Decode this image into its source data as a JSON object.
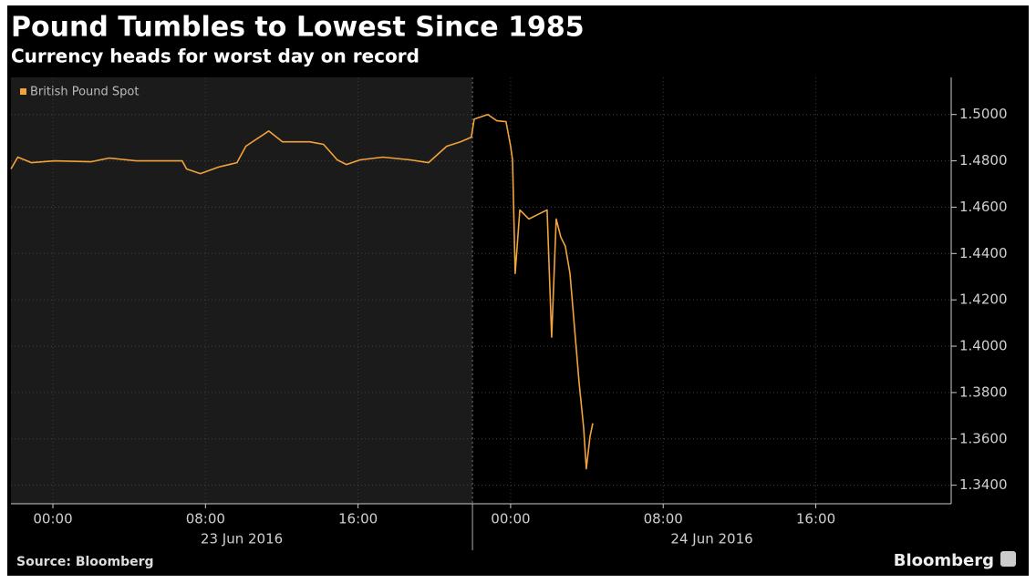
{
  "chart_data": {
    "type": "line",
    "title": "Pound Tumbles to Lowest Since 1985",
    "subtitle": "Currency heads for worst day on record",
    "source": "Source: Bloomberg",
    "brand": "Bloomberg",
    "x": [
      -2.2,
      -1.84,
      -1.12,
      0.08,
      1.99,
      2.95,
      4.38,
      6.78,
      7.01,
      7.73,
      8.69,
      9.65,
      10.12,
      11.32,
      12.04,
      13.47,
      14.19,
      14.91,
      15.39,
      16.11,
      17.3,
      18.74,
      19.69,
      20.65,
      21.37,
      21.94,
      22.09,
      22.8,
      23.28,
      23.76,
      24.0,
      24.1,
      24.24,
      24.48,
      24.96,
      25.44,
      25.91,
      26.15,
      26.39,
      26.63,
      26.87,
      27.11,
      27.35,
      27.59,
      27.83,
      27.97,
      28.16,
      28.31
    ],
    "series": [
      {
        "name": "British Pound Spot",
        "color": "#f2a33a",
        "values": [
          1.4765,
          1.4816,
          1.4792,
          1.48,
          1.4796,
          1.4812,
          1.48,
          1.48,
          1.4765,
          1.4745,
          1.4773,
          1.4792,
          1.4863,
          1.4929,
          1.4882,
          1.4882,
          1.4871,
          1.4804,
          1.4784,
          1.4804,
          1.4816,
          1.4804,
          1.4792,
          1.4863,
          1.4882,
          1.4902,
          1.498,
          1.5,
          1.4973,
          1.4969,
          1.4863,
          1.4804,
          1.4314,
          1.4588,
          1.4549,
          1.4569,
          1.4588,
          1.4039,
          1.4549,
          1.4471,
          1.4431,
          1.4314,
          1.4078,
          1.3843,
          1.3647,
          1.3471,
          1.3608,
          1.3667
        ]
      }
    ],
    "xlim": [
      -2.2,
      47.1
    ],
    "xticks": [
      {
        "value": 0,
        "label": "00:00"
      },
      {
        "value": 8,
        "label": "08:00"
      },
      {
        "value": 16,
        "label": "16:00"
      },
      {
        "value": 24,
        "label": "00:00"
      },
      {
        "value": 32,
        "label": "08:00"
      },
      {
        "value": 40,
        "label": "16:00"
      }
    ],
    "x_groups": [
      {
        "label": "23 Jun 2016",
        "range": [
          -2.2,
          22
        ]
      },
      {
        "label": "24 Jun 2016",
        "range": [
          22,
          47.1
        ]
      }
    ],
    "ylim": [
      1.332,
      1.516
    ],
    "yticks": [
      {
        "value": 1.34,
        "label": "1.3400"
      },
      {
        "value": 1.36,
        "label": "1.3600"
      },
      {
        "value": 1.38,
        "label": "1.3800"
      },
      {
        "value": 1.4,
        "label": "1.4000"
      },
      {
        "value": 1.42,
        "label": "1.4200"
      },
      {
        "value": 1.44,
        "label": "1.4400"
      },
      {
        "value": 1.46,
        "label": "1.4600"
      },
      {
        "value": 1.48,
        "label": "1.4800"
      },
      {
        "value": 1.5,
        "label": "1.5000"
      }
    ],
    "y_axis_side": "right",
    "grid": true,
    "legend": "top-left"
  }
}
